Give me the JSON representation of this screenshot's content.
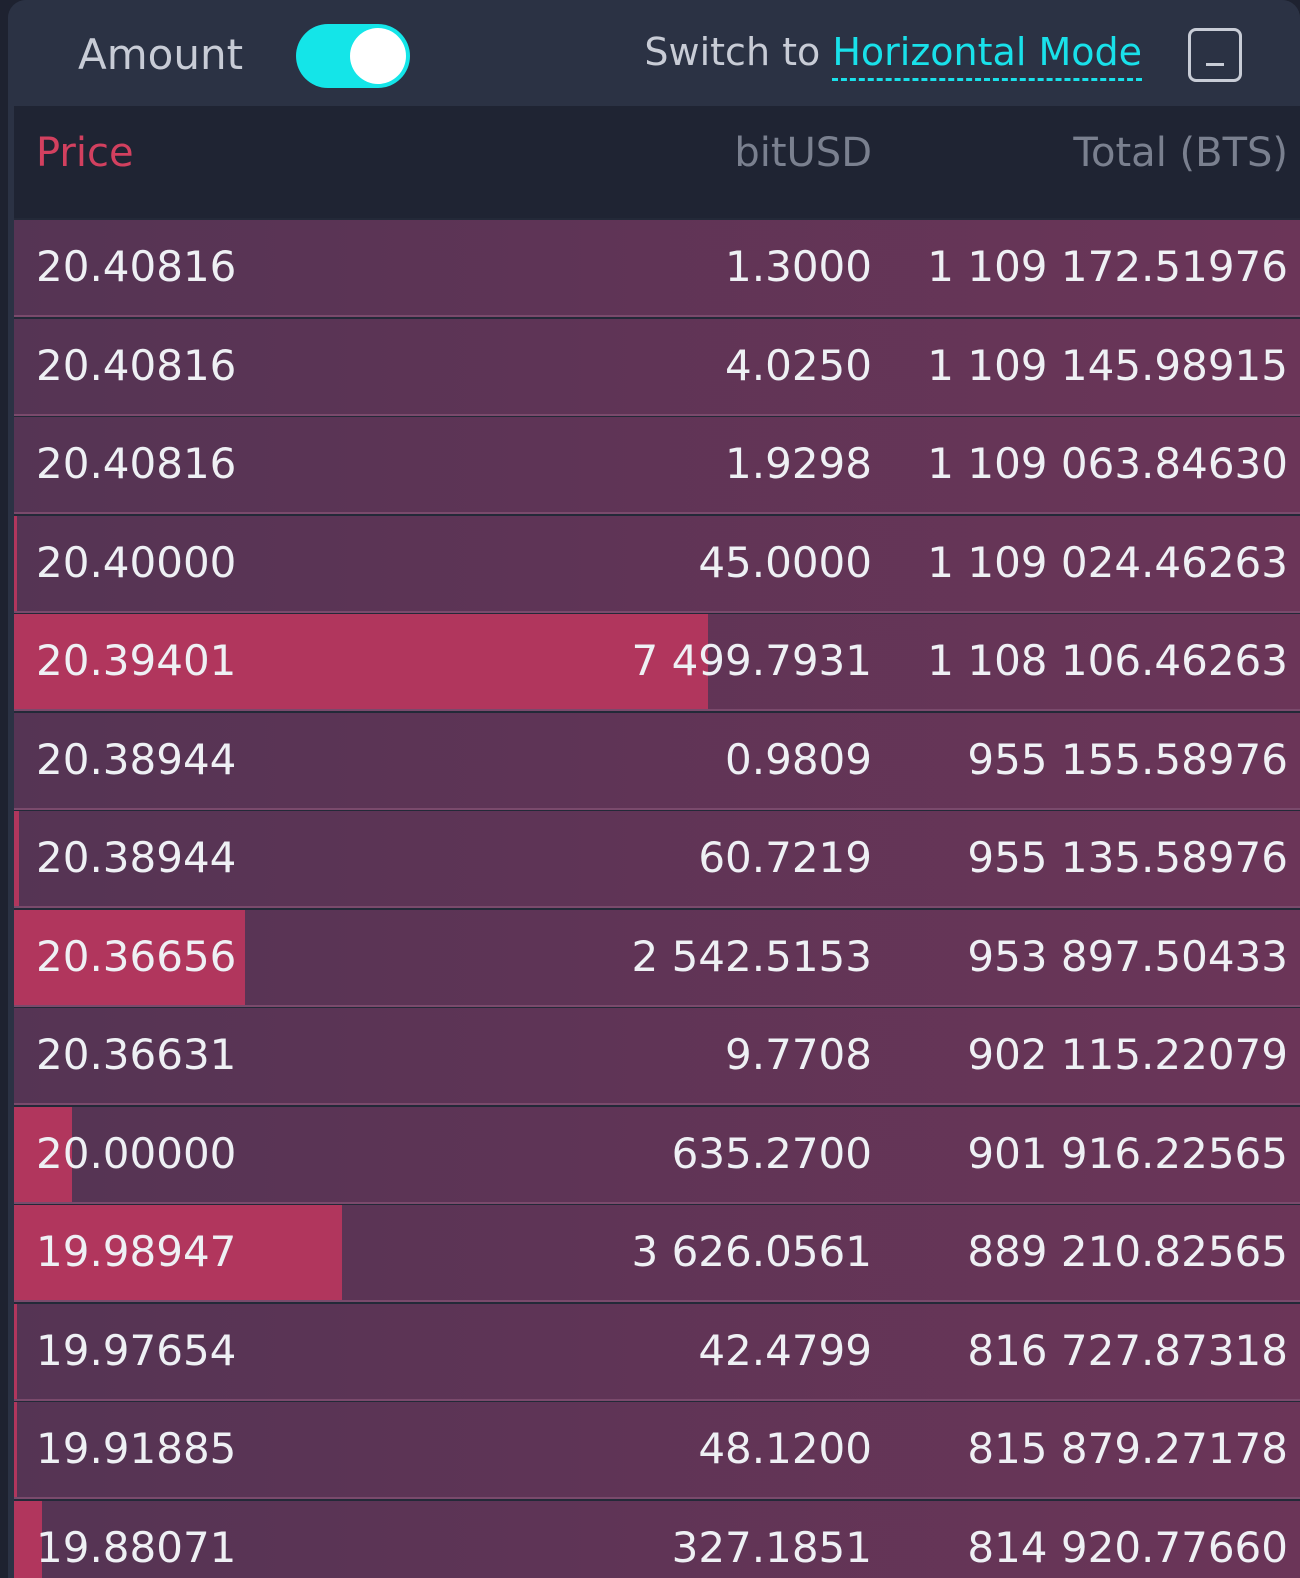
{
  "header": {
    "amount_label": "Amount",
    "toggle_on": true,
    "switch_prefix": "Switch to",
    "switch_link": "Horizontal Mode"
  },
  "columns": {
    "price": "Price",
    "amount": "bitUSD",
    "total": "Total (BTS)"
  },
  "colors": {
    "accent_cyan": "#19e1ea",
    "price_red": "#d2405f",
    "depth_bar": "#b1365d"
  },
  "rows": [
    {
      "price": "20.40816",
      "amount": "1.3000",
      "total": "1 109 172.51976",
      "depth": 0
    },
    {
      "price": "20.40816",
      "amount": "4.0250",
      "total": "1 109 145.98915",
      "depth": 0
    },
    {
      "price": "20.40816",
      "amount": "1.9298",
      "total": "1 109 063.84630",
      "depth": 0
    },
    {
      "price": "20.40000",
      "amount": "45.0000",
      "total": "1 109 024.46263",
      "depth": 0.002
    },
    {
      "price": "20.39401",
      "amount": "7 499.7931",
      "total": "1 108 106.46263",
      "depth": 0.54
    },
    {
      "price": "20.38944",
      "amount": "0.9809",
      "total": "955 155.58976",
      "depth": 0
    },
    {
      "price": "20.38944",
      "amount": "60.7219",
      "total": "955 135.58976",
      "depth": 0.004
    },
    {
      "price": "20.36656",
      "amount": "2 542.5153",
      "total": "953 897.50433",
      "depth": 0.18
    },
    {
      "price": "20.36631",
      "amount": "9.7708",
      "total": "902 115.22079",
      "depth": 0
    },
    {
      "price": "20.00000",
      "amount": "635.2700",
      "total": "901 916.22565",
      "depth": 0.045
    },
    {
      "price": "19.98947",
      "amount": "3 626.0561",
      "total": "889 210.82565",
      "depth": 0.255
    },
    {
      "price": "19.97654",
      "amount": "42.4799",
      "total": "816 727.87318",
      "depth": 0.002
    },
    {
      "price": "19.91885",
      "amount": "48.1200",
      "total": "815 879.27178",
      "depth": 0.002
    },
    {
      "price": "19.88071",
      "amount": "327.1851",
      "total": "814 920.77660",
      "depth": 0.022
    }
  ]
}
